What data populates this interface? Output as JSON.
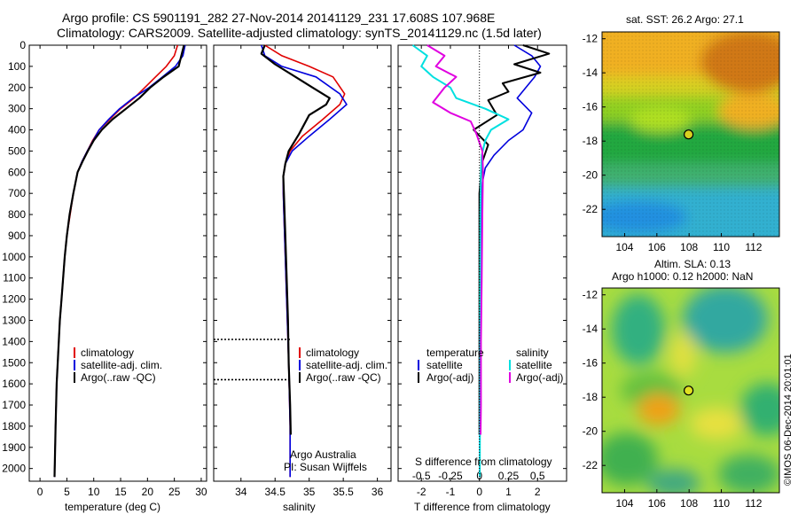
{
  "titles": {
    "line1": "Argo profile: CS 5901191_282 27-Nov-2014 20141129_231 17.608S 107.968E",
    "line2": "Climatology: CARS2009. Satellite-adjusted climatology: synTS_20141129.nc (1.5d later)"
  },
  "colors": {
    "climatology": "#e00000",
    "satellite": "#0000dd",
    "argo": "#000000",
    "sal_satellite": "#00e0e0",
    "sal_argo": "#e000e0"
  },
  "annotations": {
    "argo_australia": "Argo Australia",
    "pi": "PI: Susan Wijffels",
    "sst_title": "sat. SST: 26.2 Argo: 27.1",
    "sla_line1": "Altim. SLA: 0.13",
    "sla_line2": "Argo h1000: 0.12 h2000: NaN",
    "credit": "©IMOS 06-Dec-2014 20:01:01"
  },
  "legends": {
    "temp": [
      "climatology",
      "satellite-adj. clim.",
      "Argo(..raw -QC)"
    ],
    "sal": [
      "climatology",
      "satellite-adj. clim.",
      "Argo(..raw -QC)"
    ],
    "diff_temp_header": "temperature",
    "diff_sal_header": "salinity",
    "diff_items": [
      "satellite",
      "Argo(-adj)"
    ]
  },
  "chart_data": [
    {
      "type": "line",
      "panel": "temperature",
      "xlabel": "temperature (deg C)",
      "xlim": [
        -2,
        31
      ],
      "ylim": [
        2060,
        0
      ],
      "xticks": [
        "0",
        "5",
        "10",
        "15",
        "20",
        "25",
        "30"
      ],
      "yticks": [
        "0",
        "100",
        "200",
        "300",
        "400",
        "500",
        "600",
        "700",
        "800",
        "900",
        "1000",
        "1100",
        "1200",
        "1300",
        "1400",
        "1500",
        "1600",
        "1700",
        "1800",
        "1900",
        "2000"
      ],
      "series": [
        {
          "name": "climatology",
          "x": [
            25.6,
            25.0,
            23.5,
            21.5,
            19.5,
            17.5,
            15.0,
            13.0,
            11.0,
            9.8,
            8.8,
            7.8,
            7.0,
            6.2,
            5.6,
            5.0,
            4.6,
            4.3,
            4.0,
            3.7,
            3.5,
            3.3,
            3.1,
            2.9,
            2.7
          ],
          "y": [
            0,
            50,
            100,
            150,
            200,
            250,
            300,
            350,
            400,
            450,
            500,
            550,
            600,
            700,
            800,
            900,
            1000,
            1100,
            1200,
            1300,
            1400,
            1500,
            1600,
            1800,
            2040
          ]
        },
        {
          "name": "satellite-adj. clim.",
          "x": [
            27.0,
            26.6,
            25.2,
            22.8,
            20.3,
            17.3,
            14.8,
            12.8,
            11.0,
            9.9,
            8.8,
            7.8,
            7.0,
            6.2,
            5.5,
            5.0,
            4.6,
            4.3,
            4.0,
            3.7,
            3.5,
            3.3,
            3.1,
            2.9,
            2.7
          ],
          "y": [
            0,
            50,
            100,
            150,
            200,
            250,
            300,
            350,
            400,
            450,
            500,
            550,
            600,
            700,
            800,
            900,
            1000,
            1100,
            1200,
            1300,
            1400,
            1500,
            1600,
            1800,
            2040
          ]
        },
        {
          "name": "Argo(..raw -QC)",
          "x": [
            26.8,
            26.3,
            25.8,
            23.0,
            20.5,
            18.5,
            16.0,
            13.5,
            11.5,
            10.0,
            8.9,
            7.9,
            7.0,
            6.2,
            5.5,
            5.0,
            4.6,
            4.3,
            4.0,
            3.7,
            3.5,
            3.3,
            3.1,
            2.9,
            2.7
          ],
          "y": [
            0,
            50,
            100,
            150,
            200,
            250,
            300,
            350,
            400,
            450,
            500,
            550,
            600,
            700,
            800,
            900,
            1000,
            1100,
            1200,
            1300,
            1400,
            1500,
            1600,
            1800,
            2040
          ]
        }
      ]
    },
    {
      "type": "line",
      "panel": "salinity",
      "xlabel": "salinity",
      "xlim": [
        33.6,
        36.2
      ],
      "ylim": [
        2060,
        0
      ],
      "xticks": [
        "34",
        "34.5",
        "35",
        "35.5",
        "36"
      ],
      "series": [
        {
          "name": "climatology",
          "x": [
            34.35,
            34.6,
            35.0,
            35.35,
            35.52,
            35.45,
            35.2,
            34.9,
            34.72,
            34.65,
            34.62,
            34.62,
            34.64,
            34.67,
            34.7,
            34.72,
            34.72
          ],
          "y": [
            0,
            50,
            100,
            150,
            230,
            280,
            350,
            430,
            500,
            560,
            620,
            700,
            900,
            1200,
            1500,
            1800,
            2040
          ]
        },
        {
          "name": "satellite-adj. clim.",
          "x": [
            34.3,
            34.35,
            34.6,
            35.1,
            35.45,
            35.55,
            35.3,
            35.0,
            34.75,
            34.65,
            34.62,
            34.62,
            34.64,
            34.67,
            34.7,
            34.72,
            34.72
          ],
          "y": [
            0,
            50,
            100,
            150,
            230,
            280,
            350,
            430,
            500,
            560,
            620,
            700,
            900,
            1200,
            1500,
            1800,
            2040
          ]
        },
        {
          "name": "Argo(..raw -QC)",
          "x": [
            34.35,
            34.3,
            34.5,
            34.8,
            35.05,
            35.3,
            35.25,
            35.0,
            34.85,
            34.7,
            34.65,
            34.62,
            34.63,
            34.65,
            34.67,
            34.69,
            34.7,
            34.72,
            34.73
          ],
          "y": [
            0,
            40,
            90,
            150,
            200,
            250,
            280,
            330,
            420,
            500,
            560,
            620,
            700,
            900,
            1100,
            1300,
            1500,
            1700,
            1840
          ]
        },
        {
          "name": "Argo gap",
          "x": [
            33.6,
            34.72
          ],
          "y": [
            1390,
            1390
          ]
        },
        {
          "name": "Argo gap",
          "x": [
            33.6,
            34.72
          ],
          "y": [
            1580,
            1580
          ]
        }
      ]
    },
    {
      "type": "line",
      "panel": "difference",
      "xlabel": "T difference from climatology",
      "top_label": "S difference from climatology",
      "xlim": [
        -2.8,
        3.0
      ],
      "ylim": [
        2060,
        0
      ],
      "xticks": [
        "-2",
        "-1",
        "0",
        "1",
        "2"
      ],
      "top_ticks": [
        "-0.5",
        "-0.25",
        "0",
        "0.25",
        "0.5"
      ],
      "series": [
        {
          "name": "temperature satellite",
          "x": [
            1.2,
            1.8,
            2.1,
            1.9,
            1.6,
            1.3,
            1.8,
            1.5,
            1.0,
            0.5,
            0.2,
            0.1,
            0.05,
            0.03,
            0.02,
            0.01,
            0.01
          ],
          "y": [
            0,
            50,
            100,
            150,
            200,
            250,
            320,
            400,
            450,
            520,
            580,
            650,
            800,
            1100,
            1500,
            1800,
            2040
          ]
        },
        {
          "name": "temperature Argo(-adj)",
          "x": [
            1.5,
            2.4,
            1.2,
            2.1,
            0.8,
            1.0,
            0.3,
            0.6,
            -0.2,
            0.3,
            0.1,
            0.05,
            0.0,
            0.0,
            0.0,
            0.0
          ],
          "y": [
            0,
            40,
            90,
            130,
            180,
            220,
            260,
            330,
            400,
            470,
            550,
            620,
            700,
            1000,
            1400,
            1840
          ]
        },
        {
          "name": "salinity satellite",
          "x": [
            -2.3,
            -1.8,
            -2.0,
            -1.6,
            -1.0,
            -0.8,
            0.2,
            1.0,
            0.4,
            0.2,
            0.08,
            0.05,
            0.03,
            0.02,
            0.02,
            0.01
          ],
          "y": [
            0,
            50,
            100,
            150,
            200,
            250,
            300,
            350,
            400,
            450,
            520,
            600,
            800,
            1200,
            1600,
            2040
          ]
        },
        {
          "name": "salinity Argo(-adj)",
          "x": [
            -1.8,
            -1.2,
            -1.5,
            -0.8,
            -1.2,
            -1.6,
            -1.0,
            -0.3,
            -0.1,
            0.1,
            0.12,
            0.1,
            0.08,
            0.05,
            0.05,
            0.04
          ],
          "y": [
            0,
            50,
            100,
            150,
            200,
            270,
            320,
            360,
            420,
            500,
            600,
            800,
            1100,
            1400,
            1700,
            1840
          ]
        },
        {
          "name": "zero",
          "x": [
            0,
            0
          ],
          "y": [
            0,
            2060
          ]
        }
      ]
    },
    {
      "type": "heatmap",
      "panel": "SST map",
      "title": "sat. SST: 26.2 Argo: 27.1",
      "xticks": [
        "104",
        "106",
        "108",
        "110",
        "112"
      ],
      "yticks": [
        "-12",
        "-14",
        "-16",
        "-18",
        "-20",
        "-22"
      ],
      "marker": {
        "lon": 107.968,
        "lat": -17.608
      }
    },
    {
      "type": "heatmap",
      "panel": "SLA map",
      "title": "Altim. SLA: 0.13 / Argo h1000: 0.12 h2000: NaN",
      "xticks": [
        "104",
        "106",
        "108",
        "110",
        "112"
      ],
      "yticks": [
        "-12",
        "-14",
        "-16",
        "-18",
        "-20",
        "-22"
      ],
      "marker": {
        "lon": 107.968,
        "lat": -17.608
      }
    }
  ]
}
